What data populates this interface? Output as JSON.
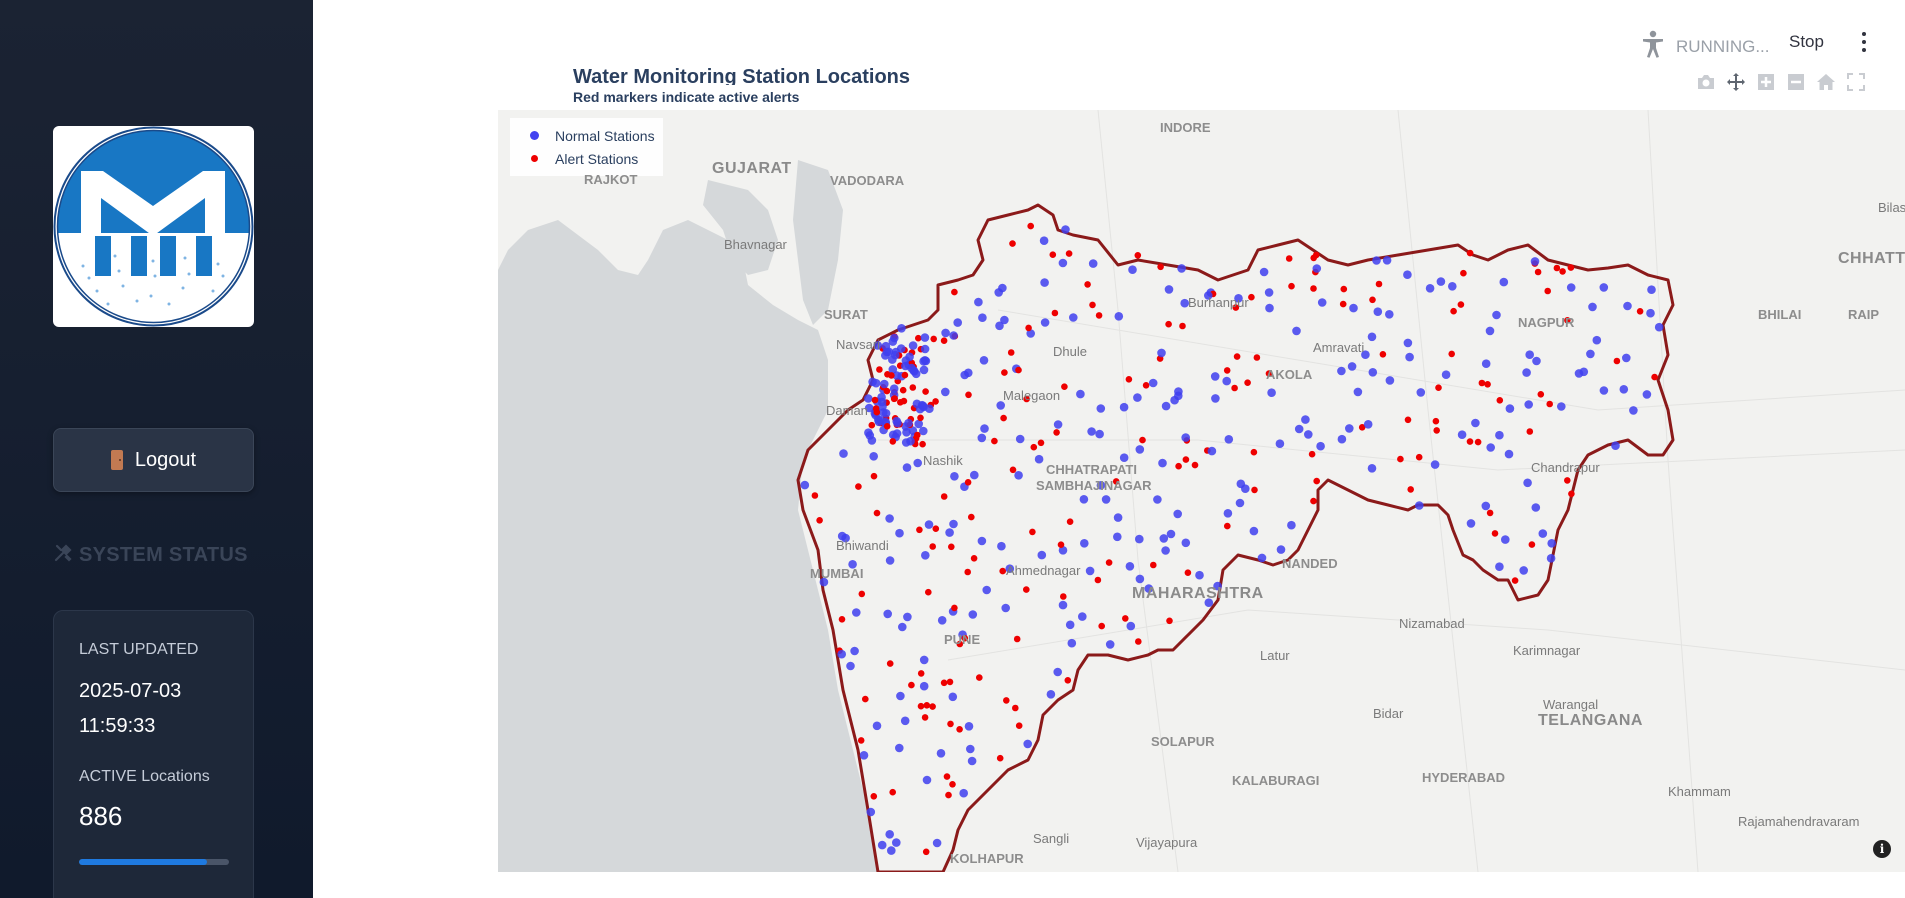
{
  "sidebar": {
    "logout_label": "Logout",
    "system_status_heading": "SYSTEM STATUS",
    "status_card": {
      "last_updated_label": "LAST UPDATED",
      "last_updated_date": "2025-07-03",
      "last_updated_time": "11:59:33",
      "active_locations_label": "ACTIVE Locations",
      "active_locations_value": "886",
      "progress_fraction": 0.85
    }
  },
  "toolbar": {
    "status_text": "RUNNING...",
    "stop_label": "Stop"
  },
  "chart": {
    "title": "Water Monitoring Station Locations",
    "subtitle": "Red markers indicate active alerts",
    "legend": [
      {
        "label": "Normal Stations",
        "color": "#4343f0"
      },
      {
        "label": "Alert Stations",
        "color": "#ee0000"
      }
    ]
  },
  "map_labels": [
    {
      "text": "INDORE"
    },
    {
      "text": "GUJARAT"
    },
    {
      "text": "RAJKOT"
    },
    {
      "text": "VADODARA"
    },
    {
      "text": "Bhavnagar"
    },
    {
      "text": "SURAT"
    },
    {
      "text": "Navsari"
    },
    {
      "text": "Daman"
    },
    {
      "text": "Bhiwandi"
    },
    {
      "text": "MUMBAI"
    },
    {
      "text": "Dhule"
    },
    {
      "text": "Malegaon"
    },
    {
      "text": "Nashik"
    },
    {
      "text": "CHHATRAPATI"
    },
    {
      "text": "SAMBHAJINAGAR"
    },
    {
      "text": "Ahmednagar"
    },
    {
      "text": "PUNE"
    },
    {
      "text": "MAHARASHTRA"
    },
    {
      "text": "Burhanpur"
    },
    {
      "text": "Amravati"
    },
    {
      "text": "AKOLA"
    },
    {
      "text": "NAGPUR"
    },
    {
      "text": "Chandrapur"
    },
    {
      "text": "NANDED"
    },
    {
      "text": "Latur"
    },
    {
      "text": "SOLAPUR"
    },
    {
      "text": "KALABURAGI"
    },
    {
      "text": "Bidar"
    },
    {
      "text": "Nizamabad"
    },
    {
      "text": "Karimnagar"
    },
    {
      "text": "Warangal"
    },
    {
      "text": "TELANGANA"
    },
    {
      "text": "HYDERABAD"
    },
    {
      "text": "Khammam"
    },
    {
      "text": "Rajamahendravaram"
    },
    {
      "text": "Vijayapura"
    },
    {
      "text": "Sangli"
    },
    {
      "text": "KOLHAPUR"
    },
    {
      "text": "BHILAI"
    },
    {
      "text": "RAIP"
    },
    {
      "text": "CHHATTI"
    },
    {
      "text": "Bilas"
    }
  ],
  "icons": {
    "accessibility": "accessibility-icon",
    "menu": "kebab-menu-icon",
    "camera": "camera-icon",
    "pan": "pan-icon",
    "zoom_in": "zoom-in-icon",
    "zoom_out": "zoom-out-icon",
    "home": "home-icon",
    "fullscreen": "fullscreen-icon",
    "info": "info-icon",
    "logout": "door-icon",
    "tools": "tools-icon"
  }
}
